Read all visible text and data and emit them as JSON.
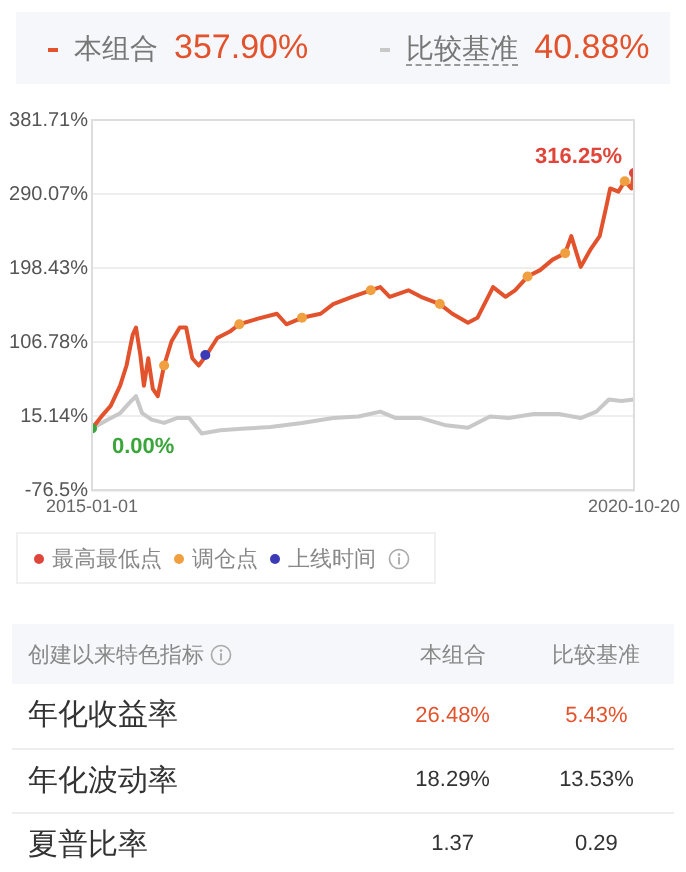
{
  "chart_data": [
    {
      "type": "line",
      "legend": "top",
      "grid": "y",
      "marker": "none",
      "line_style": "solid",
      "annotations": [
        "357.90%",
        "40.88%"
      ],
      "xlim": [
        "2015-01-01",
        "2020-10-20"
      ],
      "xticks": [
        "2015-01-01",
        "2020-10-20"
      ],
      "ylim": [
        -76.5,
        381.71
      ],
      "yticks": [
        {
          "value": -76.5,
          "label": "-76.5%"
        },
        {
          "value": 15.14,
          "label": "15.14%"
        },
        {
          "value": 106.78,
          "label": "106.78%"
        },
        {
          "value": 198.43,
          "label": "198.43%"
        },
        {
          "value": 290.07,
          "label": "290.07%"
        },
        {
          "value": 381.71,
          "label": "381.71%"
        }
      ],
      "series": [
        {
          "name": "本组合",
          "color": "#e2532d",
          "x": [
            "2015-01-01",
            "2015-02-07",
            "2015-03-15",
            "2015-04-21",
            "2015-05-16",
            "2015-06-09",
            "2015-06-22",
            "2015-07-09",
            "2015-07-23",
            "2015-08-09",
            "2015-08-27",
            "2015-09-15",
            "2015-10-10",
            "2015-11-08",
            "2015-12-10",
            "2016-01-04",
            "2016-01-28",
            "2016-02-22",
            "2016-03-24",
            "2016-05-05",
            "2016-06-23",
            "2016-07-30",
            "2016-10-11",
            "2016-12-24",
            "2017-01-30",
            "2017-04-01",
            "2017-06-13",
            "2017-08-01",
            "2017-10-14",
            "2017-12-26",
            "2018-02-01",
            "2018-03-10",
            "2018-05-22",
            "2018-07-10",
            "2018-09-22",
            "2018-11-10",
            "2019-01-10",
            "2019-02-16",
            "2019-04-18",
            "2019-06-06",
            "2019-07-13",
            "2019-08-31",
            "2019-10-19",
            "2019-12-07",
            "2020-01-25",
            "2020-02-18",
            "2020-03-26",
            "2020-05-02",
            "2020-06-08",
            "2020-07-02",
            "2020-07-19",
            "2020-08-20",
            "2020-09-14",
            "2020-10-10",
            "2020-10-20"
          ],
          "values": [
            0,
            15,
            28,
            53,
            78,
            116,
            125,
            91,
            53,
            87,
            49,
            40,
            78,
            108,
            125,
            125,
            87,
            78,
            91,
            112,
            120,
            129,
            136,
            142,
            129,
            137,
            142,
            154,
            163,
            171,
            175,
            163,
            171,
            163,
            154,
            142,
            131,
            137,
            175,
            163,
            171,
            188,
            196,
            209,
            217,
            238,
            200,
            221,
            238,
            272,
            297,
            293,
            306,
            297,
            316
          ]
        },
        {
          "name": "比较基准",
          "color": "#c8c8c8",
          "x": [
            "2015-01-01",
            "2015-03-03",
            "2015-04-21",
            "2015-05-28",
            "2015-06-22",
            "2015-07-16",
            "2015-08-22",
            "2015-10-10",
            "2015-11-28",
            "2016-01-16",
            "2016-03-05",
            "2016-05-17",
            "2016-08-23",
            "2016-11-29",
            "2017-04-01",
            "2017-08-01",
            "2017-11-08",
            "2018-02-01",
            "2018-04-03",
            "2018-07-10",
            "2018-10-16",
            "2019-01-10",
            "2019-04-06",
            "2019-06-18",
            "2019-09-24",
            "2019-12-31",
            "2020-03-26",
            "2020-05-26",
            "2020-07-14",
            "2020-09-01",
            "2020-10-20"
          ],
          "values": [
            0,
            11,
            19,
            32,
            40,
            19,
            11,
            7,
            13,
            13,
            -6,
            -2,
            0,
            2,
            7,
            13,
            15,
            21,
            13,
            13,
            4,
            1,
            15,
            13,
            18,
            18,
            13,
            21,
            36,
            34,
            36
          ]
        },
        {
          "type": "scatter",
          "marker": "circle",
          "name": "最高最低点",
          "color": "#e0453a",
          "colors": [
            "#3aa53a",
            "#e0453a"
          ],
          "x": [
            "2015-01-01",
            "2020-10-20"
          ],
          "values": [
            0,
            316.25
          ],
          "value_labels": [
            "0.00%",
            "316.25%"
          ]
        },
        {
          "type": "scatter",
          "marker": "circle",
          "name": "调仓点",
          "color": "#f0a040",
          "x": [
            "2015-10-10",
            "2016-07-30",
            "2017-04-01",
            "2017-12-26",
            "2018-09-22",
            "2019-08-31",
            "2020-01-25",
            "2020-09-14"
          ],
          "values": [
            78,
            129,
            137,
            171,
            154,
            188,
            217,
            306
          ]
        },
        {
          "type": "scatter",
          "marker": "circle",
          "name": "上线时间",
          "color": "#3b3bb8",
          "x": [
            "2016-03-19"
          ],
          "values": [
            91
          ]
        }
      ]
    },
    {
      "type": "other",
      "title": "创建以来特色指标",
      "categories": [
        "本组合",
        "比较基准"
      ],
      "y_categories": [
        "年化收益率",
        "年化波动率",
        "夏普比率"
      ],
      "cell_labels": [
        [
          "26.48%",
          "5.43%"
        ],
        [
          "18.29%",
          "13.53%"
        ],
        [
          "1.37",
          "0.29"
        ]
      ]
    }
  ]
}
